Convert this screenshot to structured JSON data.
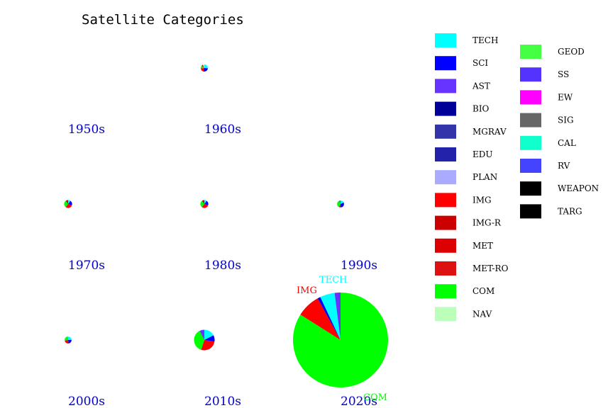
{
  "chart_data": {
    "type": "pie",
    "title": "Satellite Categories",
    "legend": [
      {
        "name": "TECH",
        "color": "#00ffff"
      },
      {
        "name": "SCI",
        "color": "#0000ff"
      },
      {
        "name": "AST",
        "color": "#6633ff"
      },
      {
        "name": "BIO",
        "color": "#000099"
      },
      {
        "name": "MGRAV",
        "color": "#3333aa"
      },
      {
        "name": "EDU",
        "color": "#2222aa"
      },
      {
        "name": "PLAN",
        "color": "#aaaaff"
      },
      {
        "name": "IMG",
        "color": "#ff0000"
      },
      {
        "name": "IMG-R",
        "color": "#cc0000"
      },
      {
        "name": "MET",
        "color": "#dd0000"
      },
      {
        "name": "MET-RO",
        "color": "#dd1111"
      },
      {
        "name": "COM",
        "color": "#00ff00"
      },
      {
        "name": "NAV",
        "color": "#bbffbb"
      },
      {
        "name": "GEOD",
        "color": "#44ff44"
      },
      {
        "name": "SS",
        "color": "#5533ff"
      },
      {
        "name": "EW",
        "color": "#ff00ff"
      },
      {
        "name": "SIG",
        "color": "#666666"
      },
      {
        "name": "CAL",
        "color": "#11ffcc"
      },
      {
        "name": "RV",
        "color": "#4444ff"
      },
      {
        "name": "WEAPON",
        "color": "#000000"
      },
      {
        "name": "TARG",
        "color": "#000000"
      }
    ],
    "panels": [
      {
        "decade": "1950s",
        "total": 0,
        "slices": []
      },
      {
        "decade": "1960s",
        "total": 30,
        "slices": [
          {
            "category": "TECH",
            "value": 8
          },
          {
            "category": "SCI",
            "value": 8
          },
          {
            "category": "IMG",
            "value": 6
          },
          {
            "category": "COM",
            "value": 4
          },
          {
            "category": "MET",
            "value": 2
          },
          {
            "category": "NAV",
            "value": 2
          }
        ]
      },
      {
        "decade": "1990s_top",
        "total": 0,
        "slices": []
      },
      {
        "decade": "1970s",
        "total": 60,
        "slices": [
          {
            "category": "TECH",
            "value": 6
          },
          {
            "category": "SCI",
            "value": 12
          },
          {
            "category": "IMG",
            "value": 18
          },
          {
            "category": "COM",
            "value": 18
          },
          {
            "category": "MET",
            "value": 6
          }
        ]
      },
      {
        "decade": "1980s",
        "total": 60,
        "slices": [
          {
            "category": "TECH",
            "value": 6
          },
          {
            "category": "SCI",
            "value": 12
          },
          {
            "category": "IMG",
            "value": 18
          },
          {
            "category": "COM",
            "value": 18
          },
          {
            "category": "MET",
            "value": 6
          }
        ]
      },
      {
        "decade": "1990s",
        "total": 45,
        "slices": [
          {
            "category": "TECH",
            "value": 8
          },
          {
            "category": "SCI",
            "value": 14
          },
          {
            "category": "IMG",
            "value": 4
          },
          {
            "category": "COM",
            "value": 16
          },
          {
            "category": "AST",
            "value": 3
          }
        ]
      },
      {
        "decade": "2000s",
        "total": 25,
        "slices": [
          {
            "category": "TECH",
            "value": 6
          },
          {
            "category": "SCI",
            "value": 6
          },
          {
            "category": "IMG",
            "value": 6
          },
          {
            "category": "COM",
            "value": 7
          }
        ]
      },
      {
        "decade": "2010s",
        "total": 400,
        "slices": [
          {
            "category": "TECH",
            "value": 70
          },
          {
            "category": "SCI",
            "value": 40
          },
          {
            "category": "IMG",
            "value": 110
          },
          {
            "category": "COM",
            "value": 150
          },
          {
            "category": "AST",
            "value": 30
          }
        ]
      },
      {
        "decade": "2020s",
        "total": 8500,
        "slices": [
          {
            "category": "COM",
            "value": 7140
          },
          {
            "category": "IMG",
            "value": 680
          },
          {
            "category": "SCI",
            "value": 85
          },
          {
            "category": "TECH",
            "value": 425
          },
          {
            "category": "AST",
            "value": 170
          }
        ],
        "labels": [
          "TECH",
          "IMG",
          "COM"
        ]
      }
    ]
  },
  "decade_labels": [
    "1950s",
    "1960s",
    "1970s",
    "1980s",
    "1990s",
    "2000s",
    "2010s",
    "2020s"
  ],
  "pie_labels": {
    "tech": "TECH",
    "img": "IMG",
    "com": "COM"
  }
}
